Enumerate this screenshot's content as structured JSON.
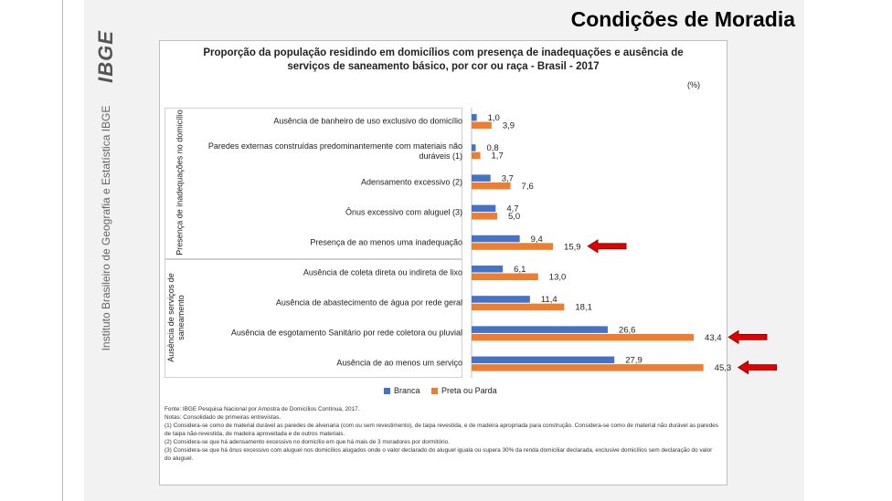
{
  "slide": {
    "title": "Condições de Moradia",
    "logo": "IBGE",
    "side_text": "Instituto Brasileiro de Geografia e Estatística   IBGE"
  },
  "chart_data": {
    "type": "bar",
    "orientation": "horizontal",
    "title": "Proporção da população residindo em domicílios com presença de inadequações e ausência de serviços de saneamento básico, por cor ou raça - Brasil - 2017",
    "unit": "(%)",
    "groups": [
      {
        "label": "Presença de inadequações no domicílio",
        "categories": [
          0,
          1,
          2,
          3,
          4
        ]
      },
      {
        "label": "Ausência de serviços de saneamento",
        "categories": [
          5,
          6,
          7,
          8
        ]
      }
    ],
    "categories": [
      "Ausência de banheiro de uso exclusivo do domicílio",
      "Paredes externas construídas predominantemente com materiais não duráveis (1)",
      "Adensamento excessivo (2)",
      "Ônus excessivo com aluguel (3)",
      "Presença de ao menos uma inadequação",
      "Ausência de coleta direta ou indireta de lixo",
      "Ausência de abastecimento de água por rede geral",
      "Ausência de esgotamento Sanitário por rede coletora ou pluvial",
      "Ausência de ao menos um serviço"
    ],
    "series": [
      {
        "name": "Branca",
        "color": "#4472c4",
        "values": [
          1.0,
          0.8,
          3.7,
          4.7,
          9.4,
          6.1,
          11.4,
          26.6,
          27.9
        ],
        "labels": [
          "1,0",
          "0,8",
          "3,7",
          "4,7",
          "9,4",
          "6,1",
          "11,4",
          "26,6",
          "27,9"
        ]
      },
      {
        "name": "Preta ou Parda",
        "color": "#ed7d31",
        "values": [
          3.9,
          1.7,
          7.6,
          5.0,
          15.9,
          13.0,
          18.1,
          43.4,
          45.3
        ],
        "labels": [
          "3,9",
          "1,7",
          "7,6",
          "5,0",
          "15,9",
          "13,0",
          "18,1",
          "43,4",
          "45,3"
        ]
      }
    ],
    "xlim": [
      0,
      50
    ],
    "highlighted_categories": [
      4,
      7,
      8
    ],
    "arrow_color": "#e00000"
  },
  "notes": [
    "Fonte: IBGE Pesquisa Nacional por Amostra de Domicílios Contínua, 2017.",
    "Notas: Consolidado de primeiras entrevistas.",
    "(1) Considera-se como de material durável as paredes de alvenaria (com ou sem revestimento), de taipa revestida, e de madeira apropriada para construção. Considera-se como de material não durável as paredes de taipa não-revestida, de madeira aproveitada e de outros materiais.",
    "(2) Considera-se que há adensamento excessivo no domicílio em que há mais de 3 moradores por dormitório.",
    "(3) Considera-se que há ônus excessivo com aluguel nos domicílios alugados onde o valor declarado do aluguel iguala ou supera 30% da renda domiciliar declarada, exclusive domicílios sem declaração do valor do aluguel."
  ]
}
